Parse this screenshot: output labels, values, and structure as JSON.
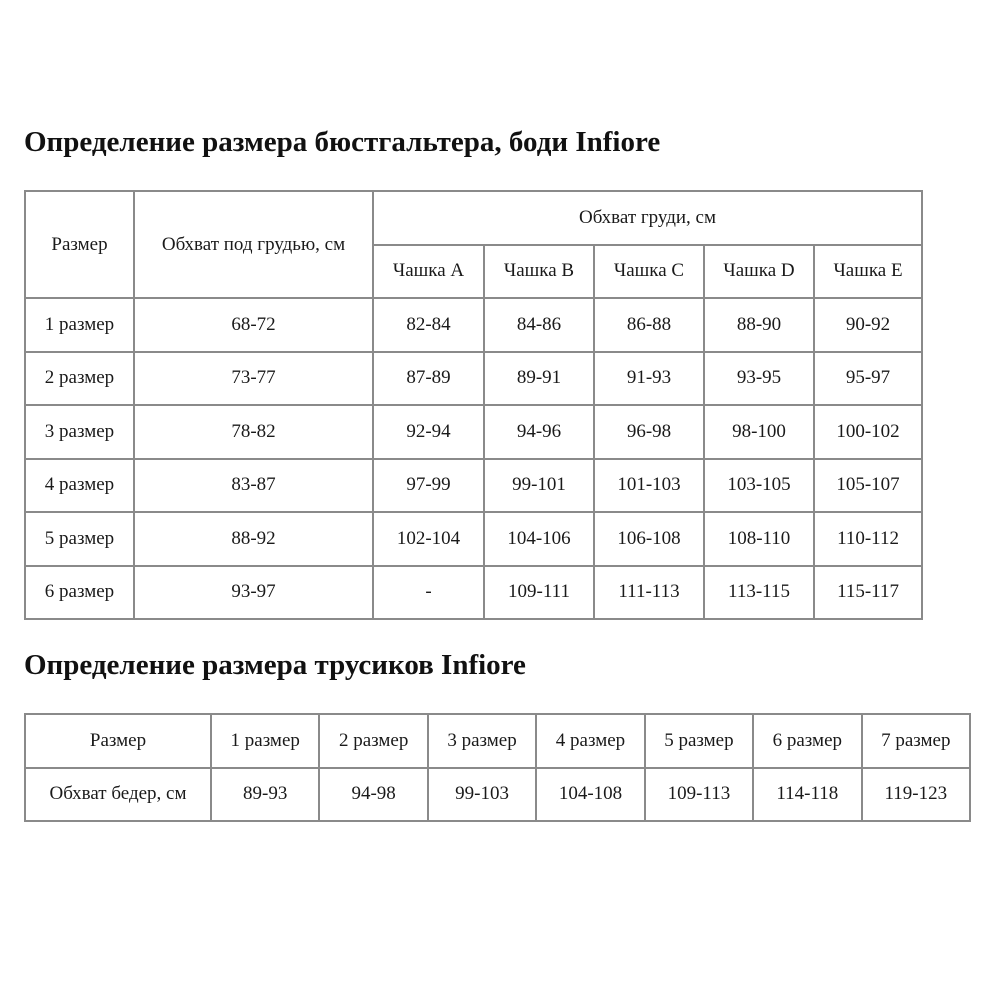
{
  "bra_section": {
    "title": "Определение размера бюстгальтера, боди Infiore",
    "headers": {
      "size": "Размер",
      "underbust": "Обхват под грудью, см",
      "bust": "Обхват груди, см",
      "cups": [
        "Чашка A",
        "Чашка B",
        "Чашка C",
        "Чашка D",
        "Чашка E"
      ]
    },
    "rows": [
      [
        "1 размер",
        "68-72",
        "82-84",
        "84-86",
        "86-88",
        "88-90",
        "90-92"
      ],
      [
        "2 размер",
        "73-77",
        "87-89",
        "89-91",
        "91-93",
        "93-95",
        "95-97"
      ],
      [
        "3 размер",
        "78-82",
        "92-94",
        "94-96",
        "96-98",
        "98-100",
        "100-102"
      ],
      [
        "4 размер",
        "83-87",
        "97-99",
        "99-101",
        "101-103",
        "103-105",
        "105-107"
      ],
      [
        "5 размер",
        "88-92",
        "102-104",
        "104-106",
        "106-108",
        "108-110",
        "110-112"
      ],
      [
        "6 размер",
        "93-97",
        "-",
        "109-111",
        "111-113",
        "113-115",
        "115-117"
      ]
    ]
  },
  "panties_section": {
    "title": "Определение размера трусиков Infiore",
    "header_row": [
      "Размер",
      "1 размер",
      "2 размер",
      "3 размер",
      "4 размер",
      "5 размер",
      "6 размер",
      "7 размер"
    ],
    "hip_row": [
      "Обхват бедер, см",
      "89-93",
      "94-98",
      "99-103",
      "104-108",
      "109-113",
      "114-118",
      "119-123"
    ]
  }
}
